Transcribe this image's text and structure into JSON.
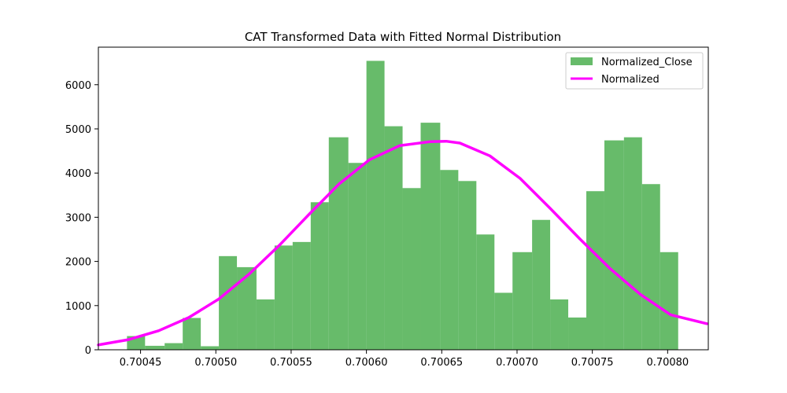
{
  "chart_data": {
    "type": "bar",
    "title": "CAT Transformed Data with Fitted Normal Distribution",
    "xlabel": "",
    "ylabel": "",
    "xlim": [
      0.700422,
      0.700827
    ],
    "ylim": [
      0,
      6850
    ],
    "x_ticks": [
      0.70045,
      0.7005,
      0.70055,
      0.7006,
      0.70065,
      0.7007,
      0.70075,
      0.7008
    ],
    "x_tick_labels": [
      "0.70045",
      "0.70050",
      "0.70055",
      "0.70060",
      "0.70065",
      "0.70070",
      "0.70075",
      "0.70080"
    ],
    "y_ticks": [
      0,
      1000,
      2000,
      3000,
      4000,
      5000,
      6000
    ],
    "y_tick_labels": [
      "0",
      "1000",
      "2000",
      "3000",
      "4000",
      "5000",
      "6000"
    ],
    "grid": false,
    "legend_position": "top-right",
    "legend": [
      "Normalized_Close",
      "Normalized"
    ],
    "colors": {
      "histogram": "#4caf50",
      "histogram_opacity": 0.85,
      "curve": "#ff00ff"
    },
    "histogram": {
      "name": "Normalized_Close",
      "bin_edges": [
        0.700441,
        0.700453,
        0.700466,
        0.700478,
        0.70049,
        0.700502,
        0.700514,
        0.700527,
        0.700539,
        0.700551,
        0.700563,
        0.700575,
        0.700588,
        0.7006,
        0.700612,
        0.700624,
        0.700636,
        0.700649,
        0.700661,
        0.700673,
        0.700685,
        0.700697,
        0.70071,
        0.700722,
        0.700734,
        0.700746,
        0.700758,
        0.700771,
        0.700783,
        0.700795,
        0.700807
      ],
      "counts": [
        310,
        90,
        150,
        720,
        80,
        2120,
        1870,
        1140,
        2360,
        2440,
        3340,
        4810,
        4230,
        6540,
        5060,
        3660,
        5140,
        4070,
        3820,
        2610,
        1290,
        2210,
        2940,
        1140,
        730,
        3590,
        4740,
        4810,
        3750,
        2210
      ]
    },
    "series": [
      {
        "name": "Normalized",
        "type": "line",
        "x": [
          0.700422,
          0.700442,
          0.700462,
          0.700482,
          0.700502,
          0.700522,
          0.700542,
          0.700562,
          0.700582,
          0.700602,
          0.700622,
          0.700642,
          0.700653,
          0.700662,
          0.700682,
          0.700702,
          0.700722,
          0.700742,
          0.700762,
          0.700782,
          0.700802,
          0.700826
        ],
        "y": [
          110,
          230,
          430,
          730,
          1150,
          1710,
          2360,
          3070,
          3760,
          4300,
          4620,
          4710,
          4720,
          4680,
          4390,
          3880,
          3200,
          2500,
          1830,
          1250,
          790,
          590
        ]
      }
    ]
  }
}
